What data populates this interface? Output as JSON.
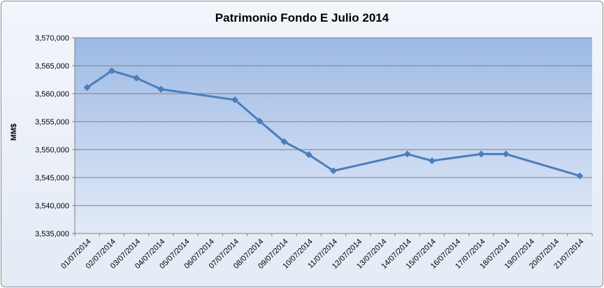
{
  "chart_data": {
    "type": "line",
    "title": "Patrimonio Fondo E Julio 2014",
    "xlabel": "",
    "ylabel": "MM$",
    "ylim": [
      3535000,
      3570000
    ],
    "y_ticks": [
      "3,535,000",
      "3,540,000",
      "3,545,000",
      "3,550,000",
      "3,555,000",
      "3,560,000",
      "3,565,000",
      "3,570,000"
    ],
    "grid": true,
    "legend": "none",
    "categories": [
      "01/07/2014",
      "02/07/2014",
      "03/07/2014",
      "04/07/2014",
      "05/07/2014",
      "06/07/2014",
      "07/07/2014",
      "08/07/2014",
      "09/07/2014",
      "10/07/2014",
      "11/07/2014",
      "12/07/2014",
      "13/07/2014",
      "14/07/2014",
      "15/07/2014",
      "16/07/2014",
      "17/07/2014",
      "18/07/2014",
      "19/07/2014",
      "20/07/2014",
      "21/07/2014"
    ],
    "series": [
      {
        "color": "#4a7ebb",
        "points": [
          {
            "x": "01/07/2014",
            "y": 3561100
          },
          {
            "x": "02/07/2014",
            "y": 3564100
          },
          {
            "x": "03/07/2014",
            "y": 3562800
          },
          {
            "x": "04/07/2014",
            "y": 3560800
          },
          {
            "x": "07/07/2014",
            "y": 3558900
          },
          {
            "x": "08/07/2014",
            "y": 3555100
          },
          {
            "x": "09/07/2014",
            "y": 3551400
          },
          {
            "x": "10/07/2014",
            "y": 3549100
          },
          {
            "x": "11/07/2014",
            "y": 3546200
          },
          {
            "x": "14/07/2014",
            "y": 3549200
          },
          {
            "x": "15/07/2014",
            "y": 3548000
          },
          {
            "x": "17/07/2014",
            "y": 3549200
          },
          {
            "x": "18/07/2014",
            "y": 3549200
          },
          {
            "x": "21/07/2014",
            "y": 3545300
          }
        ]
      }
    ]
  }
}
